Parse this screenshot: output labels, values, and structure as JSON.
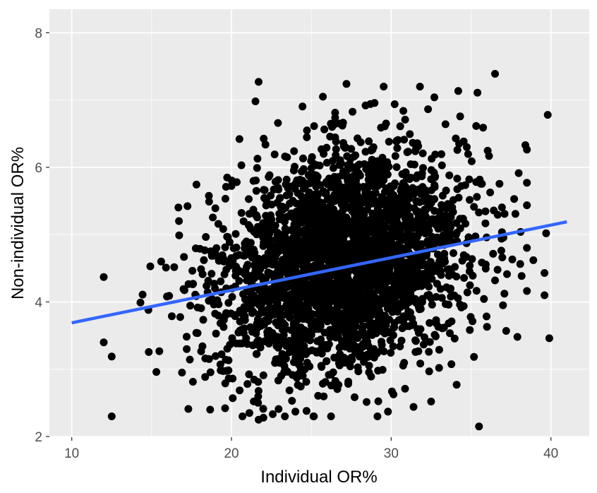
{
  "chart_data": {
    "type": "scatter",
    "title": "",
    "xlabel": "Individual OR%",
    "ylabel": "Non-individual OR%",
    "xlim": [
      8.6,
      42.4
    ],
    "ylim": [
      1.99,
      8.35
    ],
    "x_ticks": [
      10,
      20,
      30,
      40
    ],
    "y_ticks": [
      2,
      4,
      6,
      8
    ],
    "x_tick_labels": [
      "10",
      "20",
      "30",
      "40"
    ],
    "y_tick_labels": [
      "2",
      "4",
      "6",
      "8"
    ],
    "grid": true,
    "legend": "none",
    "background_color": "#EBEBEB",
    "grid_color": "#FFFFFF",
    "point_color": "#000000",
    "approx_point_count": 3000,
    "x_distribution": {
      "mean": 27.0,
      "sd": 3.8
    },
    "y_distribution": {
      "mean": 4.6,
      "sd": 0.8
    },
    "outlier_points": [
      [
        12.0,
        4.37
      ],
      [
        12.0,
        3.4
      ],
      [
        14.3,
        3.99
      ],
      [
        14.8,
        3.88
      ],
      [
        15.3,
        2.96
      ],
      [
        15.6,
        4.6
      ],
      [
        15.9,
        4.51
      ],
      [
        16.1,
        4.09
      ],
      [
        21.7,
        7.27
      ],
      [
        21.5,
        6.98
      ],
      [
        27.2,
        7.24
      ],
      [
        36.5,
        7.39
      ],
      [
        35.4,
        7.11
      ],
      [
        32.7,
        7.04
      ],
      [
        33.4,
        6.64
      ],
      [
        39.8,
        6.78
      ],
      [
        38.4,
        6.33
      ],
      [
        35.5,
        2.15
      ],
      [
        39.7,
        5.02
      ],
      [
        39.6,
        4.43
      ],
      [
        39.6,
        4.1
      ],
      [
        39.9,
        3.46
      ],
      [
        38.9,
        4.62
      ],
      [
        38.1,
        5.04
      ],
      [
        37.7,
        5.53
      ],
      [
        37.0,
        3.95
      ],
      [
        37.9,
        3.48
      ],
      [
        37.2,
        3.57
      ],
      [
        29.8,
        2.37
      ],
      [
        31.4,
        2.44
      ],
      [
        32.5,
        2.52
      ],
      [
        24.7,
        2.38
      ],
      [
        24.0,
        2.37
      ],
      [
        21.7,
        2.25
      ],
      [
        22.0,
        2.28
      ],
      [
        17.3,
        2.41
      ],
      [
        19.6,
        2.42
      ],
      [
        16.9,
        2.95
      ],
      [
        17.2,
        3.3
      ],
      [
        17.8,
        3.54
      ],
      [
        18.6,
        5.49
      ],
      [
        20.5,
        6.42
      ],
      [
        26.3,
        6.6
      ],
      [
        28.7,
        6.94
      ],
      [
        33.0,
        3.02
      ],
      [
        34.1,
        2.77
      ],
      [
        36.0,
        3.63
      ],
      [
        36.5,
        4.32
      ]
    ],
    "series": [
      {
        "type": "regression_line",
        "color": "#3366FF",
        "x": [
          10,
          41
        ],
        "y": [
          3.69,
          5.19
        ]
      }
    ]
  }
}
